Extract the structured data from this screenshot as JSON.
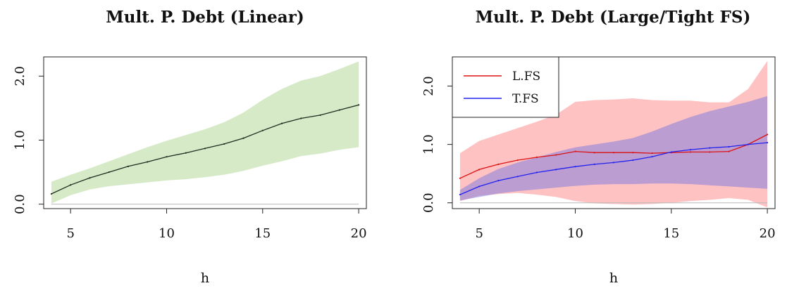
{
  "chart_data": [
    {
      "type": "line",
      "title": "Mult. P. Debt (Linear)",
      "xlabel": "h",
      "ylabel": "",
      "xlim": [
        3.6,
        20.4
      ],
      "ylim": [
        -0.07,
        2.3
      ],
      "x_ticks": [
        5,
        10,
        15,
        20
      ],
      "x_tick_labels": [
        "5",
        "10",
        "15",
        "20"
      ],
      "y_ticks": [
        0,
        1,
        2
      ],
      "y_tick_labels": [
        "0.0",
        "1.0",
        "2.0"
      ],
      "grid": false,
      "legend": null,
      "zero_line": 0,
      "x": [
        4,
        5,
        6,
        7,
        8,
        9,
        10,
        11,
        12,
        13,
        14,
        15,
        16,
        17,
        18,
        19,
        20
      ],
      "series": [
        {
          "line_color": "#1f2e1f",
          "band_color": "#d6eac8",
          "values": [
            0.16,
            0.3,
            0.41,
            0.5,
            0.59,
            0.66,
            0.74,
            0.8,
            0.87,
            0.94,
            1.03,
            1.15,
            1.26,
            1.34,
            1.39,
            1.47,
            1.55
          ],
          "lower": [
            0.01,
            0.14,
            0.23,
            0.28,
            0.31,
            0.34,
            0.37,
            0.39,
            0.42,
            0.46,
            0.52,
            0.6,
            0.67,
            0.75,
            0.79,
            0.85,
            0.89
          ],
          "upper": [
            0.35,
            0.46,
            0.56,
            0.67,
            0.78,
            0.89,
            0.99,
            1.08,
            1.17,
            1.28,
            1.43,
            1.63,
            1.8,
            1.93,
            2.0,
            2.11,
            2.23
          ]
        }
      ]
    },
    {
      "type": "line",
      "title": "Mult. P. Debt (Large/Tight FS)",
      "xlabel": "h",
      "ylabel": "",
      "xlim": [
        3.6,
        20.4
      ],
      "ylim": [
        -0.1,
        2.5
      ],
      "x_ticks": [
        5,
        10,
        15,
        20
      ],
      "x_tick_labels": [
        "5",
        "10",
        "15",
        "20"
      ],
      "y_ticks": [
        0,
        1,
        2
      ],
      "y_tick_labels": [
        "0.0",
        "1.0",
        "2.0"
      ],
      "grid": false,
      "legend": "top-left",
      "zero_line": 0,
      "x": [
        4,
        5,
        6,
        7,
        8,
        9,
        10,
        11,
        12,
        13,
        14,
        15,
        16,
        17,
        18,
        19,
        20
      ],
      "series": [
        {
          "name": "L.FS",
          "line_color": "#dd1111",
          "band_color": "rgba(255,110,110,0.42)",
          "values": [
            0.42,
            0.57,
            0.66,
            0.73,
            0.78,
            0.82,
            0.88,
            0.86,
            0.86,
            0.86,
            0.85,
            0.86,
            0.87,
            0.87,
            0.88,
            1.0,
            1.17
          ],
          "lower": [
            0.03,
            0.12,
            0.15,
            0.17,
            0.14,
            0.1,
            0.03,
            -0.01,
            -0.02,
            -0.03,
            -0.02,
            0.0,
            0.03,
            0.05,
            0.08,
            0.05,
            -0.08
          ],
          "upper": [
            0.85,
            1.06,
            1.17,
            1.28,
            1.39,
            1.51,
            1.73,
            1.76,
            1.77,
            1.79,
            1.76,
            1.75,
            1.75,
            1.72,
            1.72,
            1.95,
            2.43
          ]
        },
        {
          "name": "T.FS",
          "line_color": "#2222ee",
          "band_color": "rgba(120,120,225,0.50)",
          "values": [
            0.14,
            0.28,
            0.38,
            0.45,
            0.52,
            0.57,
            0.62,
            0.66,
            0.69,
            0.73,
            0.79,
            0.87,
            0.91,
            0.94,
            0.96,
            1.0,
            1.03
          ],
          "lower": [
            0.04,
            0.1,
            0.16,
            0.2,
            0.23,
            0.26,
            0.29,
            0.31,
            0.32,
            0.32,
            0.33,
            0.33,
            0.32,
            0.3,
            0.28,
            0.26,
            0.24
          ],
          "upper": [
            0.22,
            0.42,
            0.58,
            0.69,
            0.78,
            0.87,
            0.95,
            1.0,
            1.05,
            1.11,
            1.22,
            1.35,
            1.47,
            1.57,
            1.65,
            1.73,
            1.83
          ]
        }
      ]
    }
  ]
}
